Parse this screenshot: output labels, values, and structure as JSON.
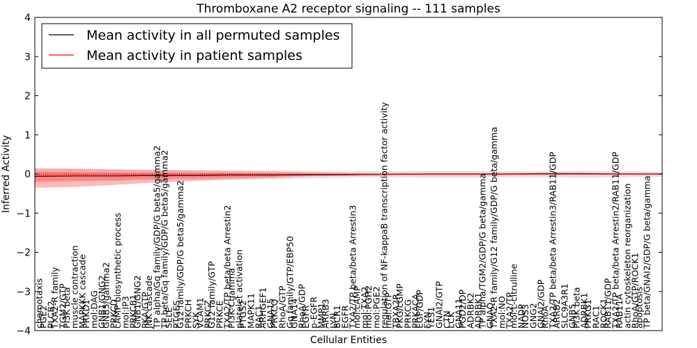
{
  "chart_data": {
    "type": "line",
    "title": "Thromboxane A2 receptor signaling -- 111 samples",
    "xlabel": "Cellular Entities",
    "ylabel": "Inferred Activity",
    "ylim": [
      -4,
      4
    ],
    "yticks": [
      -4,
      -3,
      -2,
      -1,
      0,
      1,
      2,
      3,
      4
    ],
    "xlim": [
      0,
      160
    ],
    "legend": {
      "placement": "top-left",
      "entries": [
        {
          "label": "Mean activity in all permuted samples",
          "color": "#000000"
        },
        {
          "label": "Mean activity in patient samples",
          "color": "#ff0000"
        }
      ]
    },
    "entity_labels": [
      {
        "x": 1,
        "label": "chemotaxis"
      },
      {
        "x": 2,
        "label": "PGE2"
      },
      {
        "x": 4,
        "label": "PLCB2"
      },
      {
        "x": 5,
        "label": "TXA2-R family"
      },
      {
        "x": 7,
        "label": "TGM2/GTP"
      },
      {
        "x": 8,
        "label": "PI3K beta"
      },
      {
        "x": 10,
        "label": "muscle contraction"
      },
      {
        "x": 12,
        "label": "MAPKKK cascade"
      },
      {
        "x": 13,
        "label": "PRKD1"
      },
      {
        "x": 15,
        "label": "mol:DAG"
      },
      {
        "x": 17,
        "label": "GNB1/GNG2"
      },
      {
        "x": 18,
        "label": "GNB5/gamma2"
      },
      {
        "x": 20,
        "label": "PRKCD"
      },
      {
        "x": 21,
        "label": "cAMP biosynthetic process"
      },
      {
        "x": 23,
        "label": "mol:IP3"
      },
      {
        "x": 25,
        "label": "PRKCB1"
      },
      {
        "x": 26,
        "label": "GNB1/GNG2"
      },
      {
        "x": 28,
        "label": "PKA/GTP"
      },
      {
        "x": 29,
        "label": "JNK cascade"
      },
      {
        "x": 31,
        "label": "TP alpha/Gq family/GDP/G beta5/gamma2"
      },
      {
        "x": 33,
        "label": "TP beta/Gq family/GDP/G beta5/gamma2"
      },
      {
        "x": 34,
        "label": "SELE"
      },
      {
        "x": 36,
        "label": "PTGES"
      },
      {
        "x": 37,
        "label": "G12 family/GDP/G beta5/gamma2"
      },
      {
        "x": 39,
        "label": "PRKCH"
      },
      {
        "x": 41,
        "label": "SYK"
      },
      {
        "x": 42,
        "label": "VCAM1"
      },
      {
        "x": 44,
        "label": "PRKCZ"
      },
      {
        "x": 45,
        "label": "G12 family/GTP"
      },
      {
        "x": 47,
        "label": "PRKCE"
      },
      {
        "x": 49,
        "label": "TXA2/TP beta/beta Arrestin2"
      },
      {
        "x": 50,
        "label": "PI3K-Cgamma"
      },
      {
        "x": 52,
        "label": "platelet activation"
      },
      {
        "x": 53,
        "label": "PTGS2"
      },
      {
        "x": 55,
        "label": "MAPK11"
      },
      {
        "x": 57,
        "label": "RAC1"
      },
      {
        "x": 58,
        "label": "ARHGEF1"
      },
      {
        "x": 60,
        "label": "GNA15"
      },
      {
        "x": 61,
        "label": "PRKCQ"
      },
      {
        "x": 63,
        "label": "RhoA/GTP"
      },
      {
        "x": 65,
        "label": "Gq family/GTP/EBP50"
      },
      {
        "x": 66,
        "label": "GNA14"
      },
      {
        "x": 68,
        "label": "RhoA/GDP"
      },
      {
        "x": 69,
        "label": "EGFR"
      },
      {
        "x": 71,
        "label": "p-EGFR"
      },
      {
        "x": 73,
        "label": "MMP1"
      },
      {
        "x": 74,
        "label": "ARRB3"
      },
      {
        "x": 76,
        "label": "LYN"
      },
      {
        "x": 77,
        "label": "BCR1"
      },
      {
        "x": 79,
        "label": "EGFR"
      },
      {
        "x": 81,
        "label": "TXA2/TP beta/beta Arrestin3"
      },
      {
        "x": 82,
        "label": "mol:cAMP"
      },
      {
        "x": 84,
        "label": "mol:TXA2"
      },
      {
        "x": 85,
        "label": "mol:PGH2"
      },
      {
        "x": 87,
        "label": "mol:PGE2"
      },
      {
        "x": 89,
        "label": "regulation of NF-kappaB transcription factor activity"
      },
      {
        "x": 90,
        "label": "mol:GTP"
      },
      {
        "x": 92,
        "label": "TBXA2R"
      },
      {
        "x": 93,
        "label": "PKG/cGMP"
      },
      {
        "x": 95,
        "label": "PRKCG"
      },
      {
        "x": 97,
        "label": "PRKACA"
      },
      {
        "x": 98,
        "label": "EGF/GDP"
      },
      {
        "x": 100,
        "label": "FYN"
      },
      {
        "x": 101,
        "label": "YES1"
      },
      {
        "x": 103,
        "label": "GNAI2/GTP"
      },
      {
        "x": 105,
        "label": "CTN"
      },
      {
        "x": 106,
        "label": "LCK"
      },
      {
        "x": 108,
        "label": "GNA11"
      },
      {
        "x": 109,
        "label": "PGD2/DP"
      },
      {
        "x": 111,
        "label": "ADRBK2"
      },
      {
        "x": 113,
        "label": "ADRBK1"
      },
      {
        "x": 114,
        "label": "TP alpha/TGM2/GDP/G beta/gamma"
      },
      {
        "x": 116,
        "label": "GNAQ"
      },
      {
        "x": 117,
        "label": "TXA2-R family/G12 family/GDP/G beta/gamma"
      },
      {
        "x": 119,
        "label": "mol:NO"
      },
      {
        "x": 121,
        "label": "TXA2/TP"
      },
      {
        "x": 122,
        "label": "mol:L-citrulline"
      },
      {
        "x": 124,
        "label": "NADP"
      },
      {
        "x": 125,
        "label": "NOS3"
      },
      {
        "x": 127,
        "label": "GNG2"
      },
      {
        "x": 129,
        "label": "GNAI2/GDP"
      },
      {
        "x": 130,
        "label": "RhoA"
      },
      {
        "x": 132,
        "label": "TXA2/TP beta/beta Arrestin3/RAB11/GDP"
      },
      {
        "x": 133,
        "label": "ARRB2"
      },
      {
        "x": 135,
        "label": "SLC9A3R1"
      },
      {
        "x": 137,
        "label": "GNB5"
      },
      {
        "x": 138,
        "label": "PI3K beta"
      },
      {
        "x": 140,
        "label": "ADRBK1"
      },
      {
        "x": 141,
        "label": "PRKG1"
      },
      {
        "x": 143,
        "label": "RAC1"
      },
      {
        "x": 145,
        "label": "ROCK1"
      },
      {
        "x": 146,
        "label": "RAB11/GDP"
      },
      {
        "x": 148,
        "label": "TXA2/TP beta/beta Arrestin2/RAB11/GDP"
      },
      {
        "x": 149,
        "label": "RAB11A"
      },
      {
        "x": 151,
        "label": "actin cytoskeleton reorganization"
      },
      {
        "x": 153,
        "label": "RhoA/GTP/ROCK1"
      },
      {
        "x": 154,
        "label": "apoptosis"
      },
      {
        "x": 156,
        "label": "TP beta/GNAI2/GDP/G beta/gamma"
      }
    ],
    "series": [
      {
        "name": "Mean activity in all permuted samples",
        "color": "#000000",
        "x": [
          0,
          10,
          20,
          30,
          40,
          50,
          60,
          70,
          80,
          90,
          100,
          110,
          120,
          130,
          140,
          150,
          160
        ],
        "values": [
          -0.06,
          -0.05,
          -0.05,
          -0.04,
          -0.04,
          -0.03,
          -0.03,
          -0.02,
          -0.02,
          -0.01,
          0.0,
          0.0,
          0.0,
          0.01,
          0.01,
          0.0,
          0.0
        ],
        "band_upper": [
          0.12,
          0.12,
          0.11,
          0.11,
          0.1,
          0.1,
          0.09,
          0.08,
          0.07,
          0.07,
          0.08,
          0.08,
          0.07,
          0.07,
          0.08,
          0.07,
          0.06
        ],
        "band_lower": [
          -0.18,
          -0.17,
          -0.17,
          -0.16,
          -0.15,
          -0.14,
          -0.13,
          -0.11,
          -0.09,
          -0.08,
          -0.09,
          -0.09,
          -0.08,
          -0.08,
          -0.09,
          -0.08,
          -0.07
        ]
      },
      {
        "name": "Mean activity in patient samples",
        "color": "#ff0000",
        "x": [
          0,
          10,
          20,
          30,
          40,
          50,
          60,
          70,
          80,
          90,
          100,
          110,
          120,
          130,
          140,
          150,
          160
        ],
        "values": [
          -0.05,
          -0.04,
          -0.04,
          -0.03,
          -0.03,
          -0.02,
          -0.02,
          -0.01,
          -0.01,
          -0.01,
          0.0,
          0.0,
          0.0,
          0.0,
          0.0,
          0.0,
          0.0
        ],
        "band_upper": [
          0.15,
          0.14,
          0.12,
          0.1,
          0.09,
          0.07,
          0.06,
          0.04,
          0.02,
          0.02,
          0.02,
          0.02,
          0.02,
          0.02,
          0.02,
          0.02,
          0.01
        ],
        "band_lower": [
          -0.35,
          -0.33,
          -0.28,
          -0.22,
          -0.18,
          -0.14,
          -0.1,
          -0.06,
          -0.03,
          -0.03,
          -0.03,
          -0.03,
          -0.03,
          -0.02,
          -0.02,
          -0.02,
          -0.02
        ],
        "band2_upper": [
          0.06,
          0.05,
          0.04,
          0.03,
          0.03,
          0.02,
          0.01,
          0.0,
          0.0,
          0.0,
          0.01,
          0.01,
          0.01,
          0.01,
          0.01,
          0.01,
          0.0
        ],
        "band2_lower": [
          -0.2,
          -0.18,
          -0.16,
          -0.13,
          -0.11,
          -0.09,
          -0.07,
          -0.04,
          -0.02,
          -0.02,
          -0.02,
          -0.02,
          -0.02,
          -0.01,
          -0.01,
          -0.01,
          -0.01
        ]
      }
    ]
  }
}
